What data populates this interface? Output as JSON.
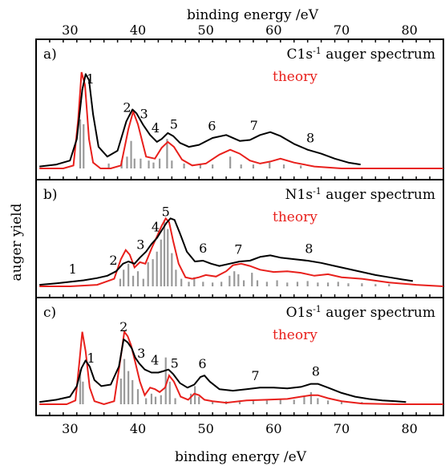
{
  "chart_data": {
    "type": "line",
    "xlabel": "binding energy /eV",
    "ylabel": "auger yield",
    "xlim": [
      25,
      85
    ],
    "xticks": [
      30,
      40,
      50,
      60,
      70,
      80
    ],
    "colors": {
      "experiment": "#000000",
      "theory": "#e8201c",
      "sticks": "#9a9a9a"
    },
    "panels": [
      {
        "tag": "a)",
        "title_main": "C1s",
        "title_sup": "-1",
        "title_rest": " auger spectrum",
        "theory_label": "theory",
        "peak_labels": [
          {
            "text": "1",
            "x": 33.0
          },
          {
            "text": "2",
            "x": 38.4
          },
          {
            "text": "3",
            "x": 40.9
          },
          {
            "text": "4",
            "x": 42.6
          },
          {
            "text": "5",
            "x": 45.3
          },
          {
            "text": "6",
            "x": 50.9
          },
          {
            "text": "7",
            "x": 57.1
          },
          {
            "text": "8",
            "x": 65.4
          }
        ],
        "experiment": {
          "x": [
            25.5,
            28,
            30,
            31,
            31.8,
            32.3,
            32.8,
            33.4,
            34.2,
            35.5,
            37,
            38.3,
            39.2,
            39.8,
            40.8,
            41.8,
            42.8,
            43.5,
            44.4,
            45.2,
            46.2,
            47.5,
            49,
            51,
            53,
            55,
            56.5,
            58,
            59.5,
            61,
            63,
            65,
            67,
            69,
            71,
            72.8
          ],
          "y": [
            0.02,
            0.04,
            0.08,
            0.3,
            0.8,
            0.96,
            0.9,
            0.55,
            0.22,
            0.12,
            0.18,
            0.48,
            0.6,
            0.56,
            0.44,
            0.34,
            0.27,
            0.3,
            0.36,
            0.33,
            0.26,
            0.22,
            0.24,
            0.31,
            0.34,
            0.28,
            0.29,
            0.34,
            0.37,
            0.33,
            0.25,
            0.19,
            0.15,
            0.1,
            0.06,
            0.04
          ]
        },
        "theory": {
          "x": [
            25.5,
            29,
            30.5,
            31.2,
            31.7,
            32.2,
            32.8,
            33.4,
            34.5,
            36,
            37.5,
            38.6,
            39.3,
            40,
            41.2,
            42.5,
            43.5,
            44.4,
            45.3,
            46.5,
            48,
            50,
            52,
            53.6,
            55,
            56.5,
            58,
            59.5,
            61,
            63,
            66,
            70,
            75,
            80,
            85
          ],
          "y": [
            0.0,
            0.0,
            0.03,
            0.5,
            0.98,
            0.85,
            0.3,
            0.06,
            0.0,
            0.0,
            0.03,
            0.4,
            0.58,
            0.45,
            0.12,
            0.1,
            0.21,
            0.27,
            0.22,
            0.09,
            0.03,
            0.05,
            0.14,
            0.19,
            0.15,
            0.08,
            0.05,
            0.07,
            0.1,
            0.06,
            0.02,
            0.0,
            0.0,
            0.0,
            0.0
          ]
        },
        "sticks": [
          [
            31.5,
            0.5
          ],
          [
            32.0,
            0.45
          ],
          [
            35.7,
            0.05
          ],
          [
            37.6,
            0.08
          ],
          [
            38.4,
            0.12
          ],
          [
            39.0,
            0.28
          ],
          [
            39.5,
            0.1
          ],
          [
            40.4,
            0.1
          ],
          [
            41.6,
            0.08
          ],
          [
            42.3,
            0.06
          ],
          [
            43.2,
            0.1
          ],
          [
            44.3,
            0.3
          ],
          [
            45.0,
            0.08
          ],
          [
            46.8,
            0.05
          ],
          [
            49.2,
            0.04
          ],
          [
            51.0,
            0.04
          ],
          [
            53.6,
            0.12
          ],
          [
            55.2,
            0.04
          ],
          [
            57.0,
            0.04
          ],
          [
            59.4,
            0.06
          ],
          [
            61.5,
            0.04
          ],
          [
            64.0,
            0.03
          ]
        ]
      },
      {
        "tag": "b)",
        "title_main": "N1s",
        "title_sup": "-1",
        "title_rest": " auger spectrum",
        "theory_label": "theory",
        "peak_labels": [
          {
            "text": "1",
            "x": 30.4
          },
          {
            "text": "2",
            "x": 36.4
          },
          {
            "text": "3",
            "x": 40.4
          },
          {
            "text": "4",
            "x": 42.6
          },
          {
            "text": "5",
            "x": 44.1
          },
          {
            "text": "6",
            "x": 49.6
          },
          {
            "text": "7",
            "x": 54.8
          },
          {
            "text": "8",
            "x": 65.2
          }
        ],
        "experiment": {
          "x": [
            25.5,
            28,
            30,
            32,
            34,
            35.5,
            36.8,
            37.8,
            38.6,
            39.5,
            40.3,
            41.2,
            42,
            42.8,
            43.5,
            44.2,
            44.8,
            45.4,
            46.2,
            47.2,
            48.4,
            49.6,
            50.8,
            52,
            53.5,
            55,
            56.5,
            58,
            59.5,
            61,
            63,
            65,
            67,
            69,
            71,
            73,
            75,
            77,
            79,
            80.5
          ],
          "y": [
            0.02,
            0.04,
            0.06,
            0.08,
            0.11,
            0.14,
            0.2,
            0.3,
            0.33,
            0.3,
            0.38,
            0.46,
            0.56,
            0.64,
            0.74,
            0.84,
            0.9,
            0.88,
            0.7,
            0.46,
            0.33,
            0.34,
            0.3,
            0.27,
            0.3,
            0.33,
            0.34,
            0.39,
            0.41,
            0.38,
            0.36,
            0.34,
            0.31,
            0.27,
            0.23,
            0.19,
            0.15,
            0.12,
            0.09,
            0.07
          ]
        },
        "theory": {
          "x": [
            25.5,
            30,
            34,
            36.5,
            37.5,
            38.2,
            38.8,
            39.5,
            40.3,
            41.1,
            42,
            42.8,
            43.5,
            44.1,
            44.6,
            45.2,
            46,
            47,
            48,
            49,
            50,
            51.5,
            53,
            54,
            55.2,
            56.5,
            58,
            60,
            62,
            64,
            66,
            68,
            70,
            73,
            77,
            81,
            85
          ],
          "y": [
            0.0,
            0.0,
            0.02,
            0.1,
            0.36,
            0.48,
            0.42,
            0.25,
            0.32,
            0.3,
            0.5,
            0.66,
            0.8,
            0.9,
            0.85,
            0.6,
            0.3,
            0.12,
            0.1,
            0.12,
            0.15,
            0.13,
            0.2,
            0.28,
            0.3,
            0.27,
            0.22,
            0.19,
            0.2,
            0.18,
            0.14,
            0.16,
            0.12,
            0.1,
            0.05,
            0.02,
            0.0
          ]
        },
        "sticks": [
          [
            37.4,
            0.1
          ],
          [
            37.9,
            0.22
          ],
          [
            38.6,
            0.3
          ],
          [
            39.3,
            0.14
          ],
          [
            40.0,
            0.2
          ],
          [
            40.8,
            0.1
          ],
          [
            41.5,
            0.32
          ],
          [
            42.2,
            0.36
          ],
          [
            42.8,
            0.46
          ],
          [
            43.4,
            0.62
          ],
          [
            43.9,
            0.88
          ],
          [
            44.4,
            0.76
          ],
          [
            45.0,
            0.44
          ],
          [
            45.6,
            0.22
          ],
          [
            46.4,
            0.1
          ],
          [
            47.5,
            0.06
          ],
          [
            48.3,
            0.12
          ],
          [
            49.6,
            0.06
          ],
          [
            51.0,
            0.05
          ],
          [
            52.3,
            0.06
          ],
          [
            53.5,
            0.14
          ],
          [
            54.2,
            0.2
          ],
          [
            54.8,
            0.16
          ],
          [
            55.6,
            0.08
          ],
          [
            56.8,
            0.18
          ],
          [
            57.6,
            0.08
          ],
          [
            59.0,
            0.06
          ],
          [
            60.5,
            0.08
          ],
          [
            62.0,
            0.05
          ],
          [
            63.5,
            0.06
          ],
          [
            65.0,
            0.07
          ],
          [
            66.5,
            0.05
          ],
          [
            68.0,
            0.05
          ],
          [
            69.5,
            0.06
          ],
          [
            71.0,
            0.04
          ],
          [
            73.0,
            0.04
          ],
          [
            75.0,
            0.03
          ],
          [
            77.0,
            0.03
          ]
        ]
      },
      {
        "tag": "c)",
        "title_main": "O1s",
        "title_sup": "-1",
        "title_rest": " auger spectrum",
        "theory_label": "theory",
        "peak_labels": [
          {
            "text": "1",
            "x": 33.1
          },
          {
            "text": "2",
            "x": 37.9
          },
          {
            "text": "3",
            "x": 40.5
          },
          {
            "text": "4",
            "x": 42.5
          },
          {
            "text": "5",
            "x": 45.4
          },
          {
            "text": "6",
            "x": 49.5
          },
          {
            "text": "7",
            "x": 57.3
          },
          {
            "text": "8",
            "x": 66.2
          }
        ],
        "experiment": {
          "x": [
            25.5,
            28,
            30,
            31,
            31.7,
            32.3,
            32.9,
            33.6,
            34.6,
            36,
            37.2,
            37.9,
            38.5,
            39.1,
            39.6,
            40.2,
            41,
            42,
            43,
            43.8,
            44.5,
            45.2,
            46.2,
            47.3,
            48.3,
            49.2,
            49.8,
            50.6,
            52,
            54,
            56,
            58,
            60,
            62,
            64,
            65.5,
            66.5,
            68,
            70,
            72,
            74,
            76,
            78,
            79.5
          ],
          "y": [
            0.03,
            0.06,
            0.1,
            0.24,
            0.48,
            0.58,
            0.5,
            0.32,
            0.24,
            0.26,
            0.5,
            0.86,
            0.82,
            0.74,
            0.62,
            0.54,
            0.46,
            0.42,
            0.42,
            0.44,
            0.46,
            0.4,
            0.28,
            0.22,
            0.26,
            0.36,
            0.38,
            0.3,
            0.2,
            0.18,
            0.2,
            0.22,
            0.22,
            0.21,
            0.23,
            0.27,
            0.27,
            0.22,
            0.15,
            0.1,
            0.07,
            0.05,
            0.04,
            0.03
          ]
        },
        "theory": {
          "x": [
            25.5,
            29.5,
            30.8,
            31.4,
            31.8,
            32.3,
            32.9,
            33.6,
            35,
            36.5,
            37.4,
            38,
            38.5,
            39,
            39.6,
            40.3,
            41,
            41.8,
            42.5,
            43.2,
            44,
            44.6,
            45.3,
            46.3,
            47.4,
            48.3,
            49,
            49.8,
            51,
            53,
            56,
            59,
            62,
            64,
            65.5,
            66.5,
            68,
            70,
            73,
            78,
            85
          ],
          "y": [
            0.0,
            0.0,
            0.05,
            0.58,
            0.96,
            0.7,
            0.22,
            0.04,
            0.0,
            0.04,
            0.58,
            0.96,
            0.9,
            0.78,
            0.56,
            0.3,
            0.12,
            0.22,
            0.2,
            0.16,
            0.22,
            0.38,
            0.3,
            0.1,
            0.06,
            0.14,
            0.12,
            0.06,
            0.04,
            0.02,
            0.05,
            0.06,
            0.07,
            0.1,
            0.12,
            0.12,
            0.08,
            0.04,
            0.01,
            0.0,
            0.0
          ]
        },
        "sticks": [
          [
            31.5,
            0.46
          ],
          [
            31.9,
            0.3
          ],
          [
            37.5,
            0.34
          ],
          [
            38.0,
            0.6
          ],
          [
            38.6,
            0.44
          ],
          [
            39.2,
            0.32
          ],
          [
            40.0,
            0.2
          ],
          [
            41.2,
            0.08
          ],
          [
            42.0,
            0.14
          ],
          [
            42.6,
            0.1
          ],
          [
            43.4,
            0.12
          ],
          [
            44.1,
            0.62
          ],
          [
            44.7,
            0.3
          ],
          [
            45.5,
            0.08
          ],
          [
            47.8,
            0.14
          ],
          [
            48.4,
            0.24
          ],
          [
            49.0,
            0.1
          ],
          [
            51.0,
            0.04
          ],
          [
            53.0,
            0.04
          ],
          [
            55.0,
            0.05
          ],
          [
            57.0,
            0.05
          ],
          [
            59.0,
            0.05
          ],
          [
            61.0,
            0.06
          ],
          [
            63.0,
            0.06
          ],
          [
            64.5,
            0.1
          ],
          [
            65.5,
            0.16
          ],
          [
            66.5,
            0.08
          ],
          [
            68.0,
            0.05
          ],
          [
            70.0,
            0.04
          ],
          [
            73.0,
            0.03
          ]
        ]
      }
    ]
  }
}
